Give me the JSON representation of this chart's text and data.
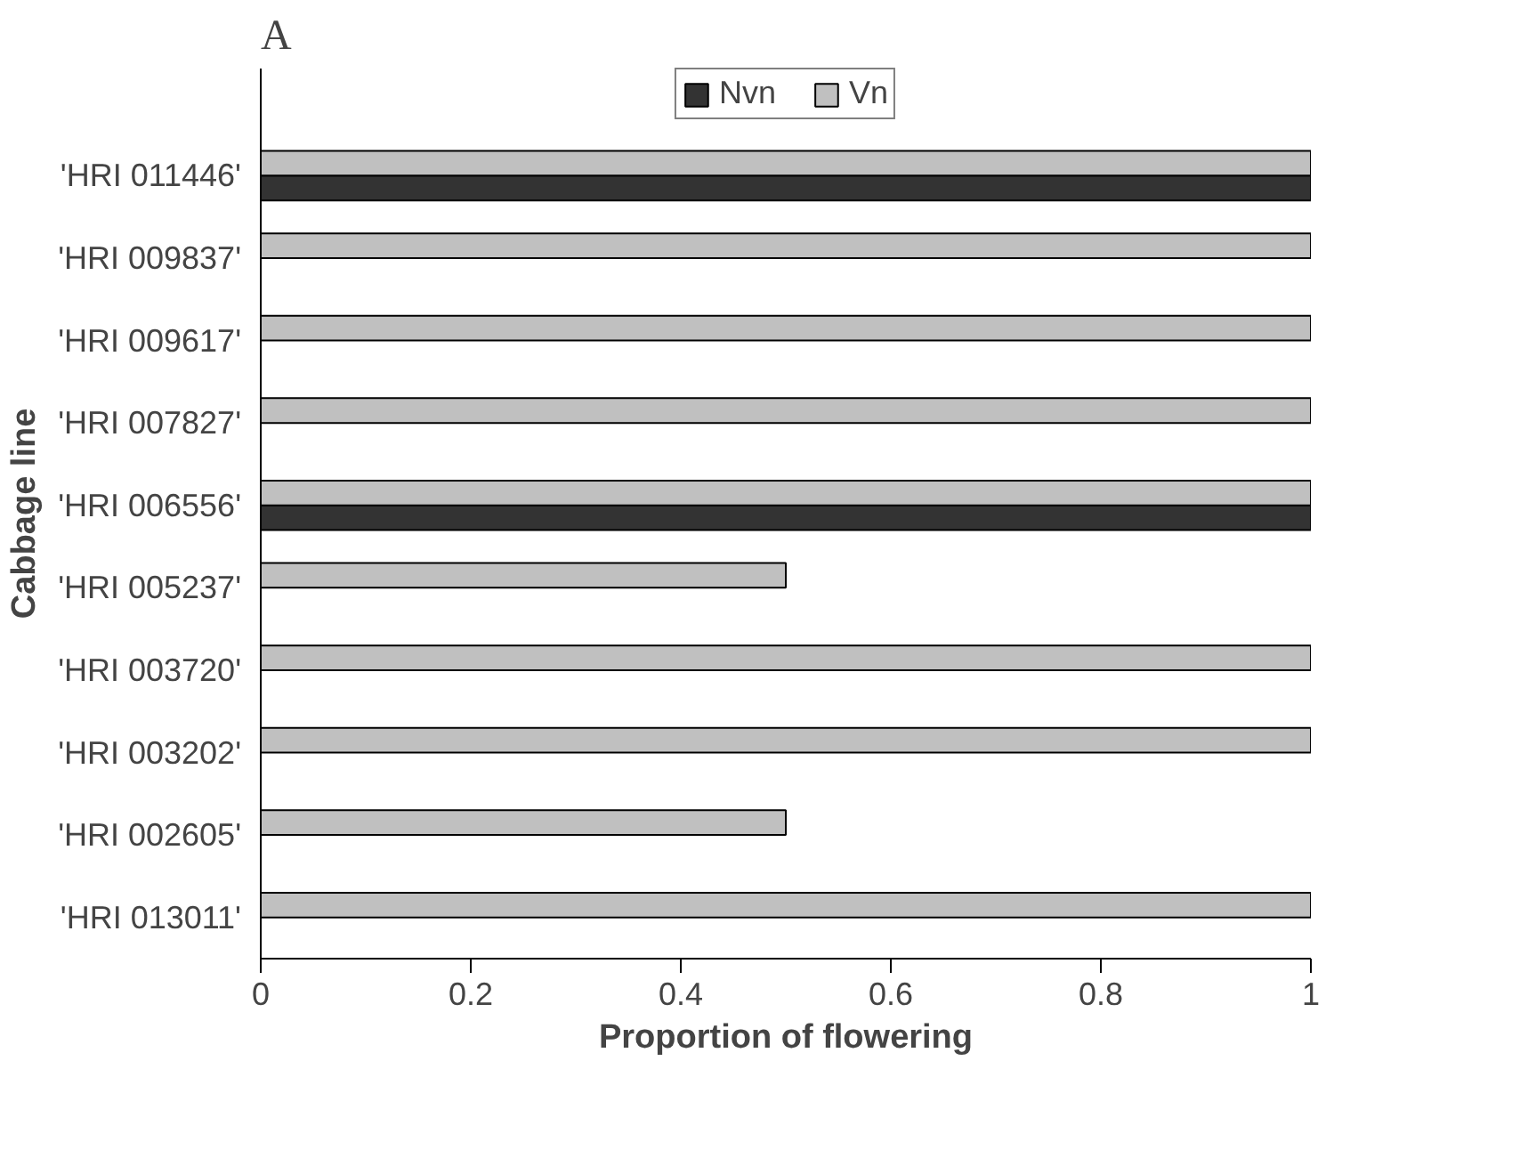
{
  "chart_data": {
    "type": "bar",
    "orientation": "horizontal",
    "xlabel": "Proportion of flowering",
    "ylabel": "Cabbage line",
    "categories": [
      "'HRI 011446'",
      "'HRI 009837'",
      "'HRI 009617'",
      "'HRI 007827'",
      "'HRI 006556'",
      "'HRI 005237'",
      "'HRI 003720'",
      "'HRI 003202'",
      "'HRI 002605'",
      "'HRI 013011'"
    ],
    "series": [
      {
        "name": "Nvn",
        "color": "#333333",
        "values": [
          1,
          null,
          null,
          null,
          1,
          null,
          null,
          null,
          null,
          null
        ]
      },
      {
        "name": "Vn",
        "color": "#c0c0c0",
        "values": [
          1,
          1,
          1,
          1,
          1,
          0.5,
          1,
          1,
          0.5,
          1
        ]
      }
    ],
    "xlim": [
      0,
      1
    ],
    "xticks": [
      0,
      0.2,
      0.4,
      0.6,
      0.8,
      1
    ],
    "grid": false,
    "legend": "top",
    "annotations": [
      "A"
    ]
  }
}
